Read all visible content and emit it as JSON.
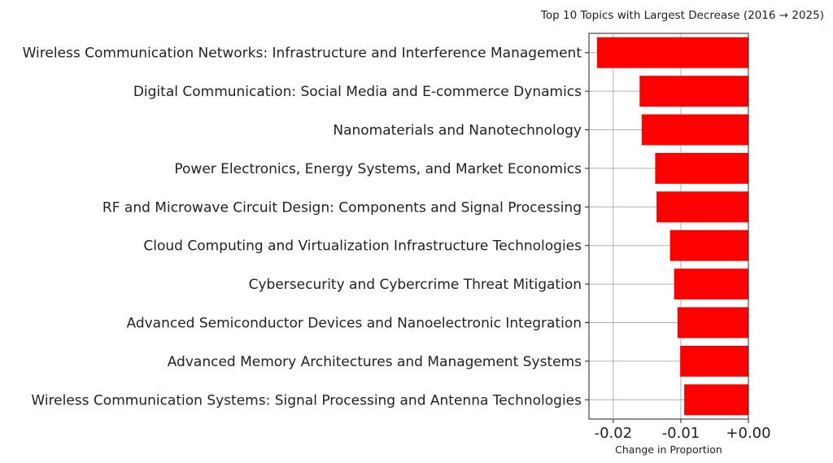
{
  "chart_data": {
    "type": "bar",
    "orientation": "horizontal",
    "title": "Top 10 Topics with Largest Decrease (2016 → 2025)",
    "xlabel": "Change in Proportion",
    "ylabel": "",
    "categories": [
      "Wireless Communication Networks: Infrastructure and Interference Management",
      "Digital Communication: Social Media and E-commerce Dynamics",
      "Nanomaterials and Nanotechnology",
      "Power Electronics, Energy Systems, and Market Economics",
      "RF and Microwave Circuit Design: Components and Signal Processing",
      "Cloud Computing and Virtualization Infrastructure Technologies",
      "Cybersecurity and Cybercrime Threat Mitigation",
      "Advanced Semiconductor Devices and Nanoelectronic Integration",
      "Advanced Memory Architectures and Management Systems",
      "Wireless Communication Systems: Signal Processing and Antenna Technologies"
    ],
    "values": [
      -0.0224,
      -0.0161,
      -0.0158,
      -0.0138,
      -0.0136,
      -0.0116,
      -0.011,
      -0.0105,
      -0.0101,
      -0.0095
    ],
    "xlim": [
      -0.0236,
      0.0
    ],
    "xticks": [
      -0.02,
      -0.01,
      0.0
    ],
    "xtick_labels": [
      "-0.02",
      "-0.01",
      "+0.00"
    ],
    "bar_color": "#ff0000",
    "grid": true,
    "legend": "none"
  }
}
